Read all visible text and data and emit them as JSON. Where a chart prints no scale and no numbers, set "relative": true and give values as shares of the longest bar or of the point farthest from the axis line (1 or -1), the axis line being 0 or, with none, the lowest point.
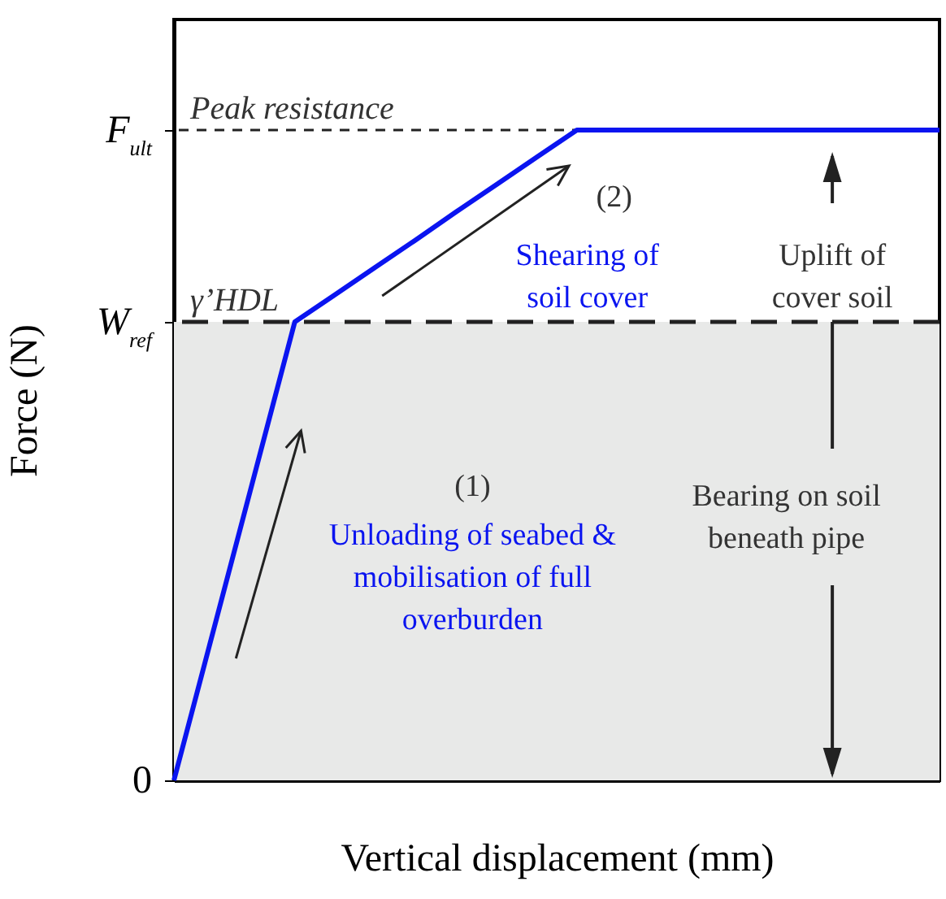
{
  "chart_data": {
    "type": "line",
    "relative": true,
    "xlabel": "Vertical displacement (mm)",
    "ylabel": "Force (N)",
    "categories": [
      null,
      null,
      null,
      null,
      null,
      null,
      null,
      null,
      null,
      null,
      null,
      null,
      null,
      null,
      null,
      null,
      null,
      null,
      null,
      null
    ],
    "series": [
      {
        "color": "#0a14f0",
        "values": [
          0,
          0.235,
          0.47,
          0.705,
          0.747,
          0.789,
          0.831,
          0.874,
          0.916,
          0.958,
          1,
          1,
          1,
          1,
          1,
          1,
          1,
          1,
          1,
          1
        ]
      }
    ],
    "grid": false,
    "bands": [
      {
        "axis": "y",
        "from": 0,
        "to": 0.705,
        "color": "#e8e9e8"
      }
    ],
    "ref_lines": [
      {
        "axis": "y",
        "value": 0.705,
        "label": "γ’HDL",
        "line_style": "dashed"
      },
      {
        "axis": "y",
        "value": 1,
        "label": "Peak resistance",
        "line_style": "dashed"
      }
    ],
    "annotations": [
      "0",
      "W$_{ref}$",
      "F$_{ult}$",
      "(1)",
      "Unloading of seabed & mobilisation of full overburden",
      "(2)",
      "Shearing of soil cover",
      "Uplift of cover soil",
      "Bearing on soil beneath pipe"
    ]
  }
}
